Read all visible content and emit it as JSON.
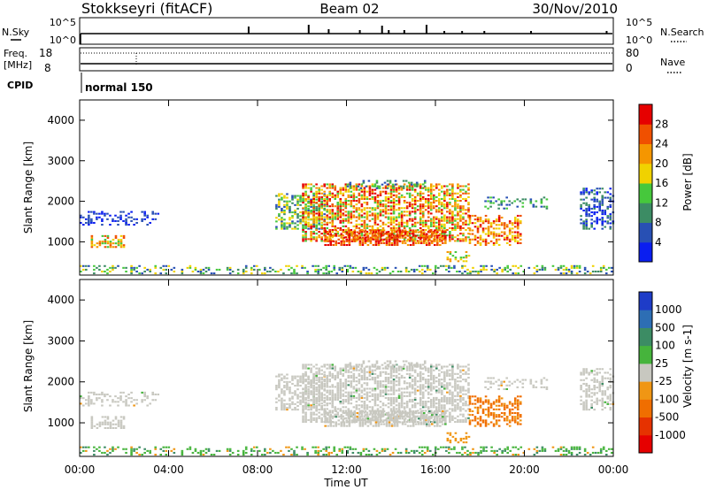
{
  "header": {
    "station": "Stokkseyri (fitACF)",
    "beam": "Beam 02",
    "date": "30/Nov/2010"
  },
  "status_panels": {
    "nsky_label": "N.Sky",
    "nsearch_label": "N.Search",
    "nsky_ticks": [
      "10^5",
      "10^0"
    ],
    "nsearch_ticks": [
      "10^5",
      "10^0"
    ],
    "freq_label": "Freq.",
    "freq_unit": "[MHz]",
    "freq_ticks": [
      "18",
      "8"
    ],
    "nave_label": "Nave",
    "nave_ticks": [
      "80",
      "0"
    ],
    "cpid_label": "CPID",
    "cpid_value": "normal 150"
  },
  "chart_data": [
    {
      "type": "heatmap",
      "parameter": "power",
      "ylabel": "Slant Range [km]",
      "xlabel": "",
      "ylim": [
        180,
        4500
      ],
      "yticks": [
        1000,
        2000,
        3000,
        4000
      ],
      "xlim_hours": [
        0,
        24
      ],
      "colorbar_label": "Power [dB]",
      "colorbar_ticks": [
        "4",
        "8",
        "12",
        "16",
        "20",
        "24",
        "28"
      ],
      "colorbar_colors": [
        "#0a1ef0",
        "#2850b4",
        "#3c8c64",
        "#46c83c",
        "#f0d200",
        "#f59600",
        "#f05000",
        "#e60000"
      ],
      "colorbar_range": [
        0,
        30
      ]
    },
    {
      "type": "heatmap",
      "parameter": "velocity",
      "ylabel": "Slant Range [km]",
      "xlabel": "Time UT",
      "ylim": [
        180,
        4500
      ],
      "yticks": [
        1000,
        2000,
        3000,
        4000
      ],
      "xlim_hours": [
        0,
        24
      ],
      "xticks": [
        "00:00",
        "04:00",
        "08:00",
        "12:00",
        "16:00",
        "20:00",
        "00:00"
      ],
      "colorbar_label": "Velocity [m s-1]",
      "colorbar_ticks": [
        "1000",
        "500",
        "100",
        "25",
        "-25",
        "-100",
        "-500",
        "-1000"
      ],
      "colorbar_colors": [
        "#1e3cc8",
        "#2d6eb4",
        "#3c8c64",
        "#46b43c",
        "#c8c8c0",
        "#f09614",
        "#f06e00",
        "#e63200",
        "#e60000"
      ]
    }
  ]
}
